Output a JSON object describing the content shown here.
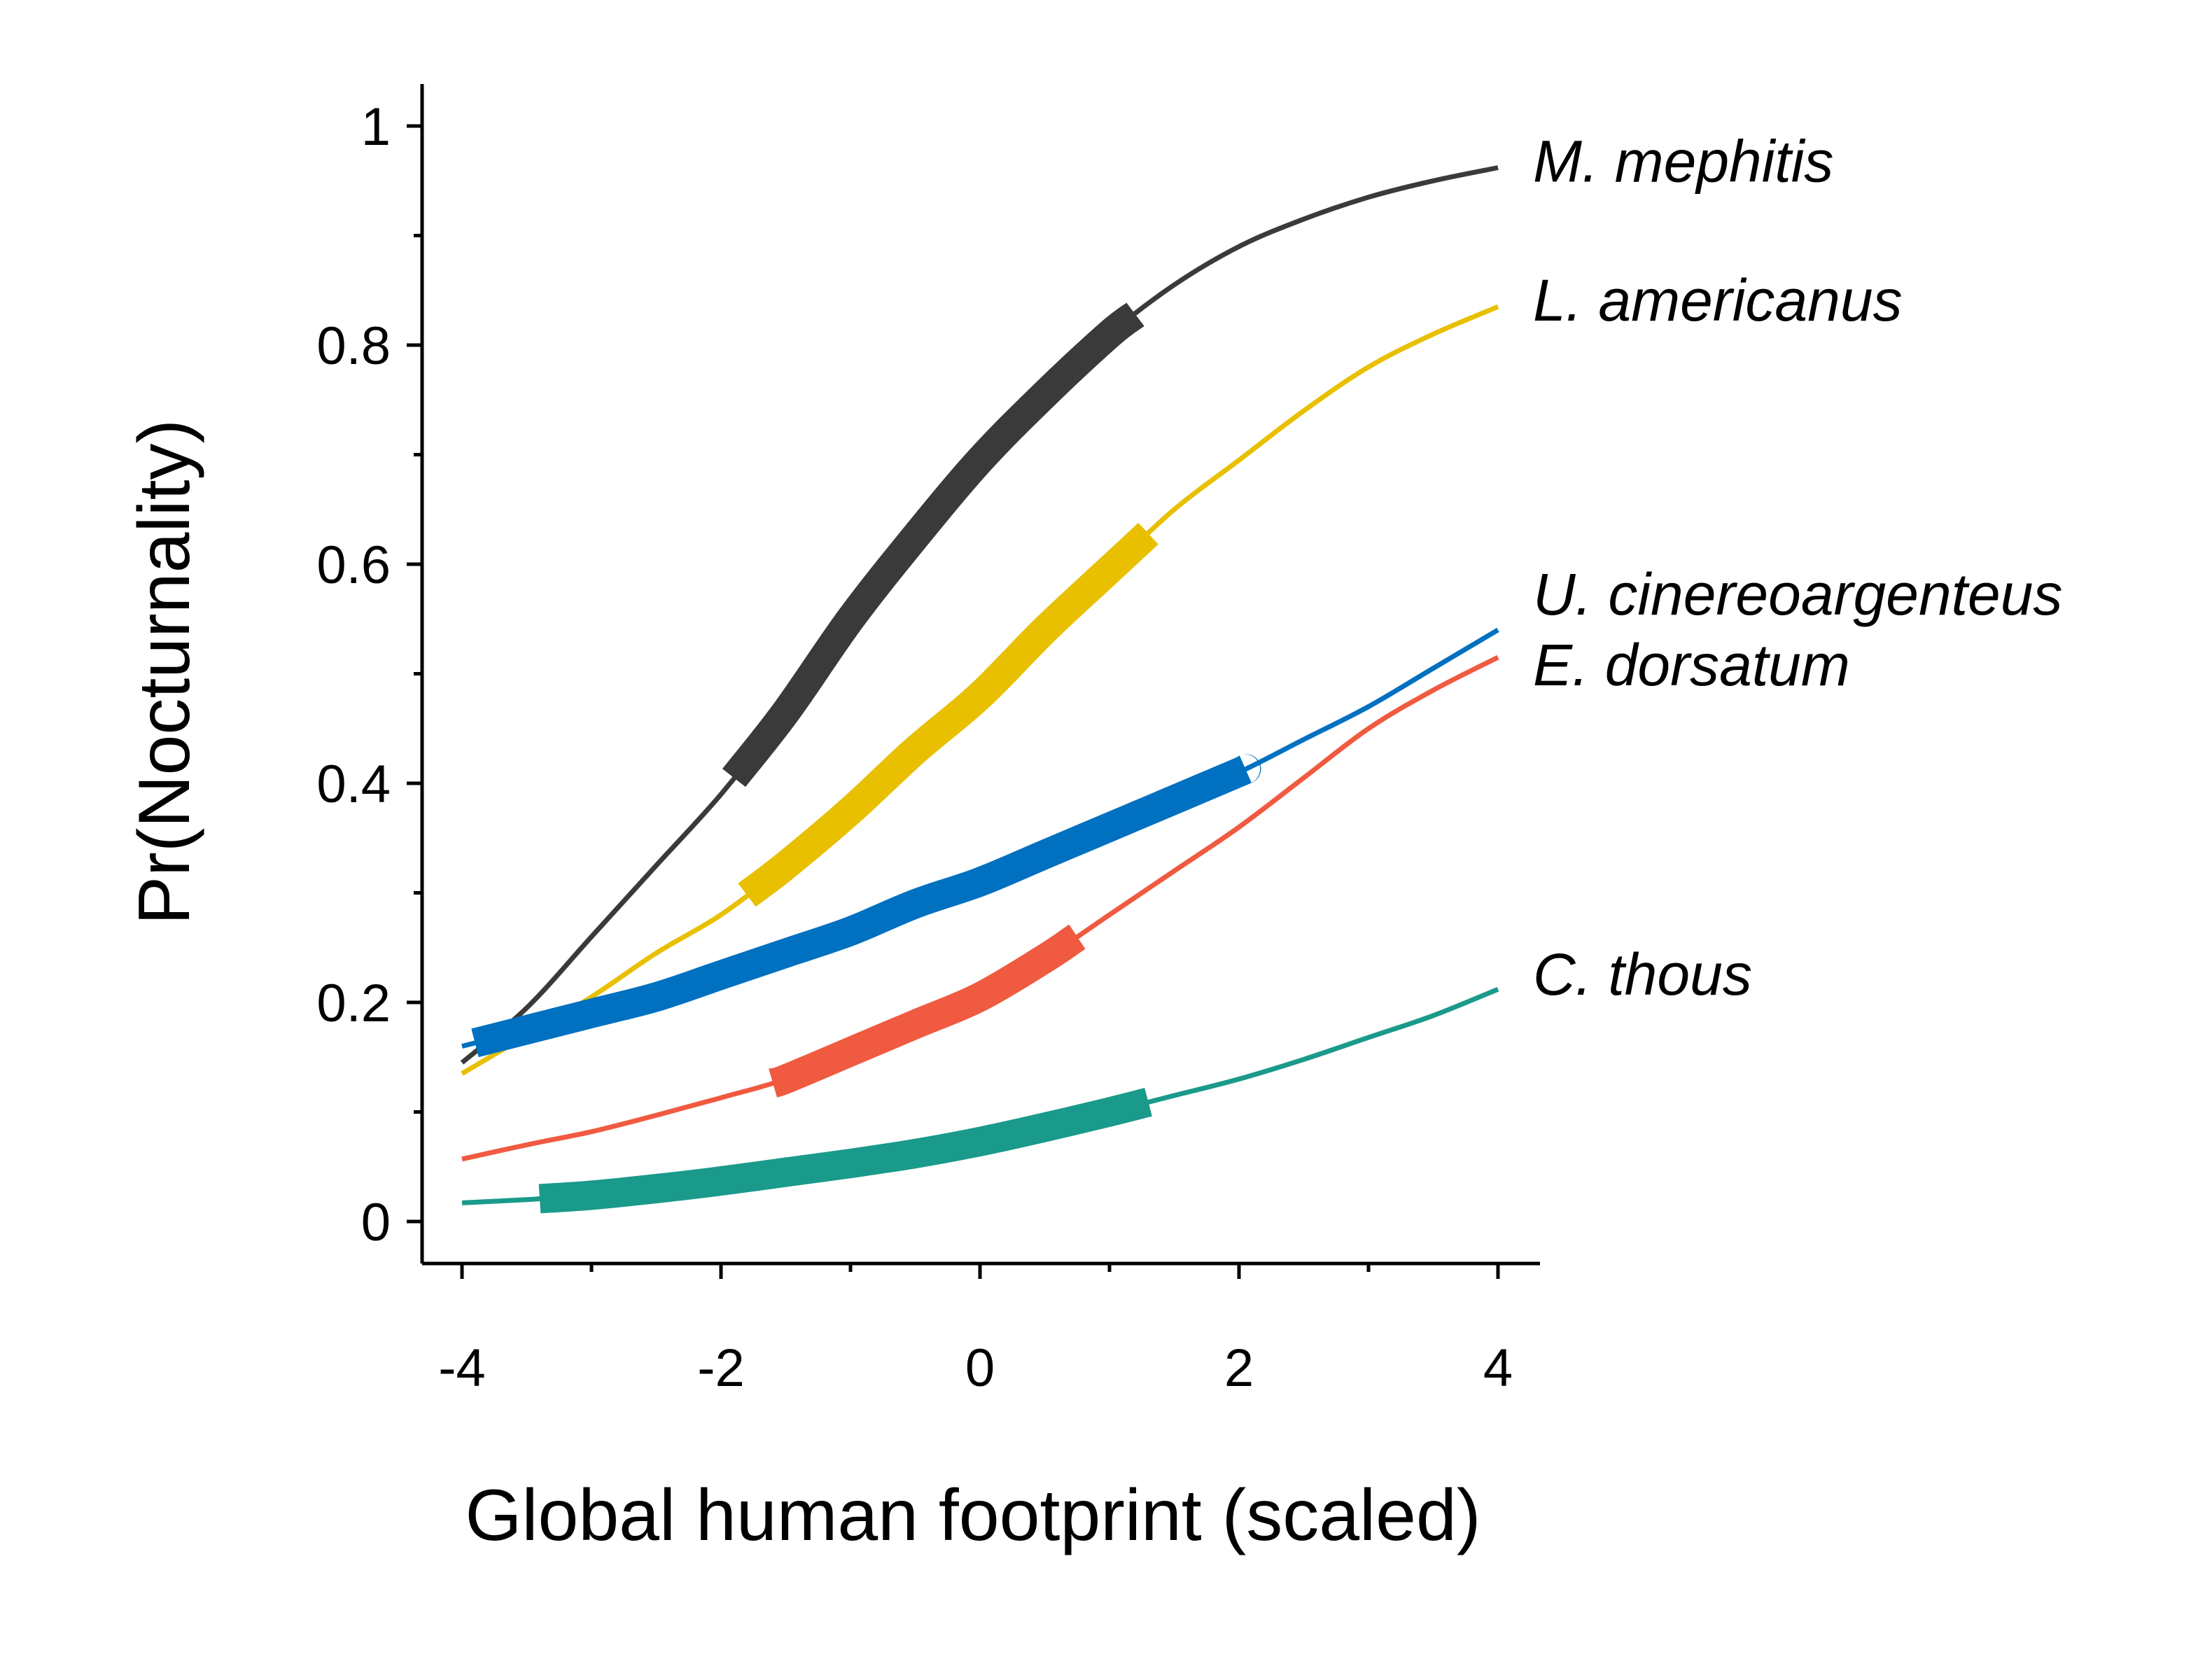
{
  "chart_data": {
    "type": "line",
    "title": "",
    "xlabel": "Global human footprint (scaled)",
    "ylabel": "Pr(Nocturnality)",
    "xlim": [
      -4,
      4
    ],
    "ylim": [
      0,
      1
    ],
    "x_ticks": [
      -4,
      -2,
      0,
      2,
      4
    ],
    "x_tick_labels": [
      "-4",
      "-2",
      "0",
      "2",
      "4"
    ],
    "x_minor_ticks": [
      -3,
      -1,
      1,
      3
    ],
    "y_ticks": [
      0,
      0.2,
      0.4,
      0.6,
      0.8,
      1
    ],
    "y_tick_labels": [
      "0",
      "0.2",
      "0.4",
      "0.6",
      "0.8",
      "1"
    ],
    "y_minor_ticks": [
      0.1,
      0.3,
      0.5,
      0.7,
      0.9
    ],
    "grid": false,
    "legend": "direct labels at right end of each line",
    "series": [
      {
        "name": "M. mephitis",
        "color": "#3a3a3a",
        "x": [
          -4,
          -3.5,
          -3,
          -2.5,
          -2,
          -1.5,
          -1,
          -0.5,
          0,
          0.5,
          1,
          1.5,
          2,
          2.5,
          3,
          3.5,
          4
        ],
        "y": [
          0.145,
          0.195,
          0.26,
          0.325,
          0.39,
          0.465,
          0.55,
          0.625,
          0.695,
          0.755,
          0.81,
          0.855,
          0.89,
          0.915,
          0.935,
          0.95,
          0.962
        ],
        "range_highlight": [
          -1.9,
          1.2
        ]
      },
      {
        "name": "L. americanus",
        "color": "#e8c000",
        "x": [
          -4,
          -3.5,
          -3,
          -2.5,
          -2,
          -1.5,
          -1,
          -0.5,
          0,
          0.5,
          1,
          1.5,
          2,
          2.5,
          3,
          3.5,
          4
        ],
        "y": [
          0.135,
          0.17,
          0.205,
          0.245,
          0.28,
          0.325,
          0.375,
          0.43,
          0.48,
          0.54,
          0.595,
          0.65,
          0.695,
          0.74,
          0.78,
          0.81,
          0.835
        ],
        "range_highlight": [
          -1.8,
          1.3
        ]
      },
      {
        "name": "U. cinereoargenteus",
        "color": "#0070c0",
        "x": [
          -4,
          -3.5,
          -3,
          -2.5,
          -2,
          -1.5,
          -1,
          -0.5,
          0,
          0.5,
          1,
          1.5,
          2,
          2.5,
          3,
          3.5,
          4
        ],
        "y": [
          0.16,
          0.175,
          0.19,
          0.205,
          0.225,
          0.245,
          0.265,
          0.29,
          0.31,
          0.335,
          0.36,
          0.385,
          0.41,
          0.44,
          0.47,
          0.505,
          0.54
        ],
        "range_highlight": [
          -3.9,
          2.05
        ]
      },
      {
        "name": "E. dorsatum",
        "color": "#f05a40",
        "x": [
          -4,
          -3.5,
          -3,
          -2.5,
          -2,
          -1.5,
          -1,
          -0.5,
          0,
          0.5,
          1,
          1.5,
          2,
          2.5,
          3,
          3.5,
          4
        ],
        "y": [
          0.057,
          0.07,
          0.082,
          0.097,
          0.113,
          0.13,
          0.155,
          0.18,
          0.205,
          0.24,
          0.28,
          0.32,
          0.36,
          0.405,
          0.45,
          0.485,
          0.515
        ],
        "range_highlight": [
          -1.6,
          0.75
        ]
      },
      {
        "name": "C. thous",
        "color": "#1a9a8a",
        "x": [
          -4,
          -3.5,
          -3,
          -2.5,
          -2,
          -1.5,
          -1,
          -0.5,
          0,
          0.5,
          1,
          1.5,
          2,
          2.5,
          3,
          3.5,
          4
        ],
        "y": [
          0.017,
          0.02,
          0.024,
          0.03,
          0.037,
          0.045,
          0.053,
          0.062,
          0.073,
          0.086,
          0.1,
          0.115,
          0.13,
          0.148,
          0.168,
          0.188,
          0.212
        ],
        "range_highlight": [
          -3.4,
          1.3
        ]
      }
    ]
  }
}
